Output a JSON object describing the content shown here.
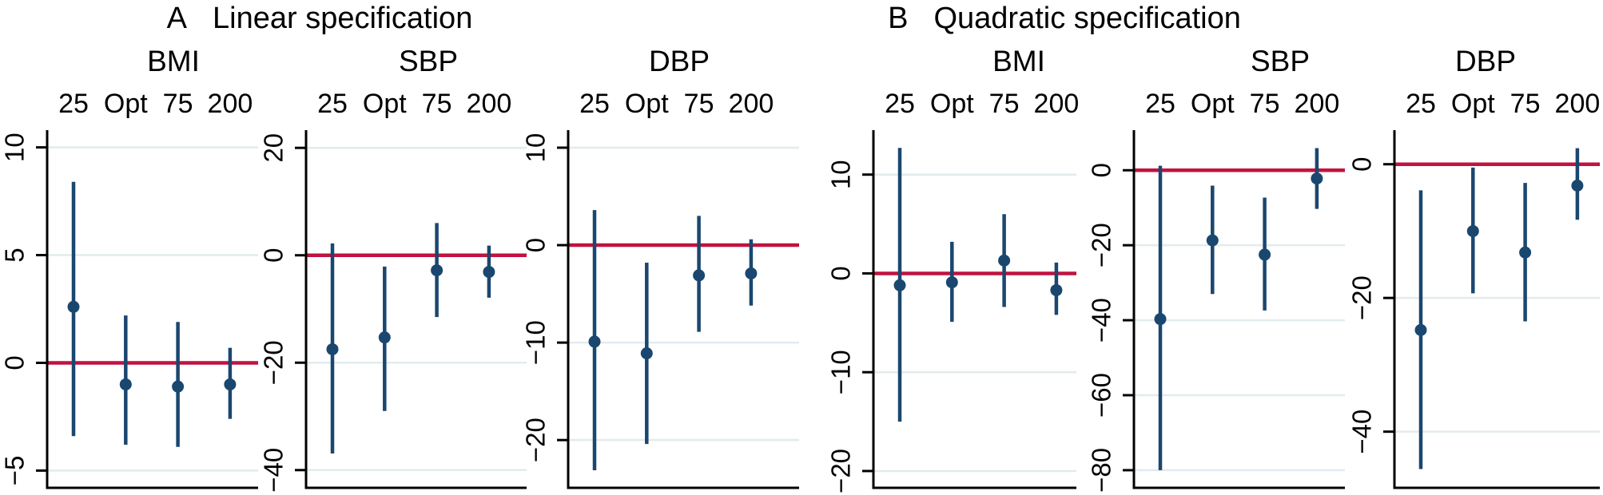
{
  "figure": {
    "kind": "coefficient-plot",
    "panels": [
      {
        "label": "A",
        "title": "Linear specification"
      },
      {
        "label": "B",
        "title": "Quadratic specification"
      }
    ]
  },
  "colors": {
    "point": "#1a476f",
    "ci": "#1a476f",
    "zero_line": "#c11240",
    "grid": "#e2ebee",
    "axis": "#000000",
    "background": "#ffffff"
  },
  "chart_data": [
    {
      "type": "scatter",
      "panel": "A",
      "outcome": "BMI",
      "x_axis_position": "top",
      "x_categories": [
        "25",
        "Opt",
        "75",
        "200"
      ],
      "estimates": [
        2.6,
        -1.0,
        -1.1,
        -1.0
      ],
      "ci_low": [
        -3.4,
        -3.8,
        -3.9,
        -2.6
      ],
      "ci_high": [
        8.4,
        2.2,
        1.9,
        0.7
      ],
      "yticks": [
        10,
        5,
        0,
        -5
      ],
      "ylim": [
        -5.8,
        10.8
      ],
      "ref_line": 0,
      "grid": true
    },
    {
      "type": "scatter",
      "panel": "A",
      "outcome": "SBP",
      "x_axis_position": "top",
      "x_categories": [
        "25",
        "Opt",
        "75",
        "200"
      ],
      "estimates": [
        -17.5,
        -15.3,
        -2.8,
        -3.1
      ],
      "ci_low": [
        -36.9,
        -29.0,
        -11.5,
        -7.9
      ],
      "ci_high": [
        2.2,
        -2.1,
        6.0,
        1.8
      ],
      "yticks": [
        20,
        0,
        -20,
        -40
      ],
      "ylim": [
        -43.3,
        23.3
      ],
      "ref_line": 0,
      "grid": true
    },
    {
      "type": "scatter",
      "panel": "A",
      "outcome": "DBP",
      "x_axis_position": "top",
      "x_categories": [
        "25",
        "Opt",
        "75",
        "200"
      ],
      "estimates": [
        -9.9,
        -11.1,
        -3.1,
        -2.9
      ],
      "ci_low": [
        -23.1,
        -20.4,
        -8.9,
        -6.2
      ],
      "ci_high": [
        3.6,
        -1.8,
        3.0,
        0.6
      ],
      "yticks": [
        10,
        0,
        -10,
        -20
      ],
      "ylim": [
        -24.9,
        11.8
      ],
      "ref_line": 0,
      "grid": true
    },
    {
      "type": "scatter",
      "panel": "B",
      "outcome": "BMI",
      "x_axis_position": "top",
      "x_categories": [
        "25",
        "Opt",
        "75",
        "200"
      ],
      "estimates": [
        -1.2,
        -0.9,
        1.3,
        -1.7
      ],
      "ci_low": [
        -15.0,
        -4.9,
        -3.4,
        -4.2
      ],
      "ci_high": [
        12.7,
        3.2,
        6.0,
        1.1
      ],
      "yticks": [
        10,
        0,
        -10,
        -20
      ],
      "ylim": [
        -21.7,
        14.5
      ],
      "ref_line": 0,
      "grid": true
    },
    {
      "type": "scatter",
      "panel": "B",
      "outcome": "SBP",
      "x_axis_position": "top",
      "x_categories": [
        "25",
        "Opt",
        "75",
        "200"
      ],
      "estimates": [
        -39.7,
        -18.7,
        -22.5,
        -2.2
      ],
      "ci_low": [
        -80.0,
        -33.0,
        -37.4,
        -10.3
      ],
      "ci_high": [
        1.2,
        -4.1,
        -7.3,
        5.9
      ],
      "yticks": [
        0,
        -20,
        -40,
        -60,
        -80
      ],
      "ylim": [
        -84.7,
        10.7
      ],
      "ref_line": 0,
      "grid": true
    },
    {
      "type": "scatter",
      "panel": "B",
      "outcome": "DBP",
      "x_axis_position": "top",
      "x_categories": [
        "25",
        "Opt",
        "75",
        "200"
      ],
      "estimates": [
        -24.8,
        -10.0,
        -13.2,
        -3.2
      ],
      "ci_low": [
        -45.6,
        -19.3,
        -23.5,
        -8.3
      ],
      "ci_high": [
        -3.9,
        -0.5,
        -2.8,
        2.4
      ],
      "yticks": [
        0,
        -20,
        -40
      ],
      "ylim": [
        -48.4,
        5.1
      ],
      "ref_line": 0,
      "grid": true
    }
  ]
}
